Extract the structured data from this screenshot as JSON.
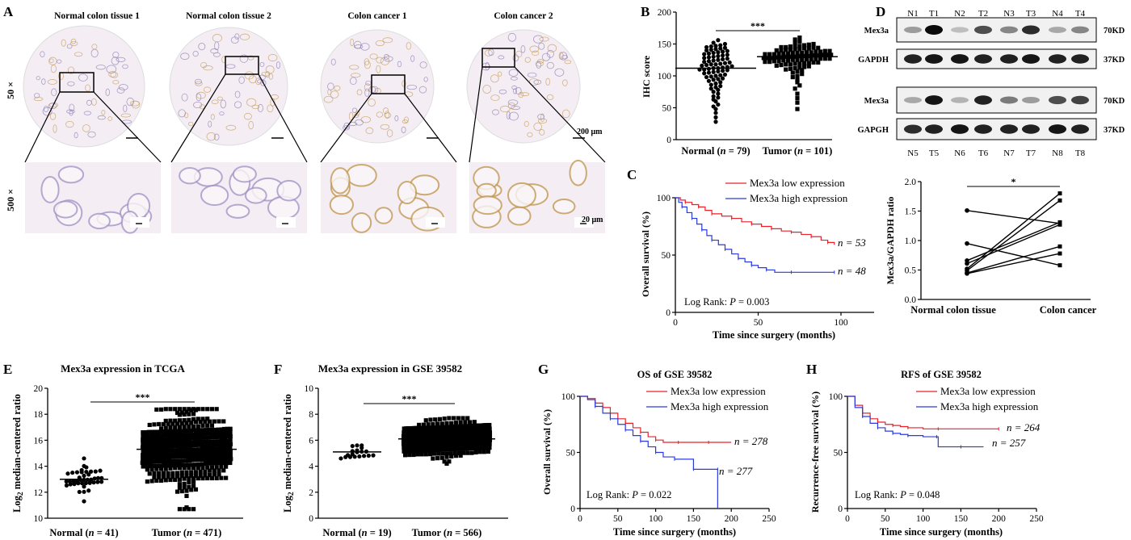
{
  "colors": {
    "black": "#000000",
    "red": "#e8222a",
    "blue": "#2a3bdc",
    "tissue_bg": "#f4eef4",
    "stain": "#c39a55"
  },
  "panelA": {
    "letter": "A",
    "columns": [
      "Normal colon tissue 1",
      "Normal colon tissue 2",
      "Colon cancer 1",
      "Colon cancer 2"
    ],
    "row_labels": [
      "50 ×",
      "500 ×"
    ],
    "scale_low": "200 μm",
    "scale_high": "20 μm"
  },
  "panelB": {
    "letter": "B",
    "sig": "***"
  },
  "panelC": {
    "letter": "C"
  },
  "panelD": {
    "letter": "D",
    "top_lanes": [
      "N1",
      "T1",
      "N2",
      "T2",
      "N3",
      "T3",
      "N4",
      "T4"
    ],
    "bottom_lanes": [
      "N5",
      "T5",
      "N6",
      "T6",
      "N7",
      "T7",
      "N8",
      "T8"
    ],
    "blots": [
      {
        "label": "Mex3a",
        "kd": "70KD",
        "intensity": [
          0.35,
          1.0,
          0.2,
          0.7,
          0.45,
          0.85,
          0.3,
          0.45
        ]
      },
      {
        "label": "GAPDH",
        "kd": "37KD",
        "intensity": [
          0.9,
          0.95,
          0.95,
          0.9,
          0.9,
          0.95,
          0.9,
          0.9
        ]
      },
      {
        "label": "Mex3a",
        "kd": "70KD",
        "intensity": [
          0.3,
          0.95,
          0.25,
          0.9,
          0.5,
          0.35,
          0.7,
          0.75
        ]
      },
      {
        "label": "GAPGH",
        "kd": "37KD",
        "intensity": [
          0.85,
          0.9,
          0.95,
          0.9,
          0.9,
          0.9,
          0.95,
          0.9
        ]
      }
    ],
    "sig": "*"
  },
  "panelE": {
    "letter": "E",
    "sig": "***"
  },
  "panelF": {
    "letter": "F",
    "sig": "***"
  },
  "panelG": {
    "letter": "G"
  },
  "panelH": {
    "letter": "H"
  },
  "chart_data": [
    {
      "id": "B",
      "type": "scatter",
      "title": "",
      "xlabel": "",
      "ylabel": "IHC score",
      "ylim": [
        0,
        200
      ],
      "yticks": [
        0,
        50,
        100,
        150,
        200
      ],
      "categories": [
        "Normal (n = 79)",
        "Tumor (n = 101)"
      ],
      "medians": [
        112,
        130
      ],
      "series": [
        {
          "n": 79,
          "marker": "circle",
          "values": [
            28,
            35,
            42,
            48,
            52,
            55,
            60,
            63,
            66,
            68,
            72,
            75,
            78,
            80,
            82,
            84,
            86,
            88,
            90,
            92,
            94,
            95,
            96,
            98,
            99,
            100,
            101,
            102,
            104,
            105,
            106,
            107,
            108,
            109,
            110,
            110,
            111,
            112,
            112,
            113,
            114,
            115,
            116,
            117,
            118,
            118,
            119,
            120,
            121,
            122,
            123,
            124,
            125,
            126,
            127,
            128,
            129,
            130,
            131,
            132,
            133,
            134,
            135,
            136,
            137,
            138,
            139,
            140,
            141,
            142,
            143,
            144,
            145,
            146,
            147,
            148,
            150,
            152,
            156
          ]
        },
        {
          "n": 101,
          "marker": "square",
          "values": [
            48,
            58,
            65,
            72,
            80,
            85,
            90,
            94,
            98,
            100,
            103,
            105,
            107,
            109,
            110,
            111,
            112,
            113,
            114,
            115,
            116,
            117,
            118,
            118,
            119,
            119,
            120,
            120,
            121,
            121,
            122,
            122,
            123,
            123,
            124,
            124,
            125,
            125,
            125,
            126,
            126,
            126,
            127,
            127,
            127,
            128,
            128,
            128,
            129,
            129,
            129,
            130,
            130,
            130,
            130,
            131,
            131,
            131,
            132,
            132,
            132,
            133,
            133,
            133,
            134,
            134,
            134,
            135,
            135,
            135,
            136,
            136,
            136,
            137,
            137,
            138,
            138,
            139,
            139,
            140,
            140,
            141,
            141,
            142,
            142,
            143,
            143,
            144,
            144,
            145,
            145,
            146,
            146,
            147,
            148,
            149,
            150,
            152,
            154,
            157,
            160
          ]
        }
      ]
    },
    {
      "id": "C",
      "type": "line",
      "xlabel": "Time since surgery (months)",
      "ylabel": "Overall survival (%)",
      "xlim": [
        0,
        120
      ],
      "ylim": [
        0,
        100
      ],
      "xticks": [
        0,
        50,
        100
      ],
      "yticks": [
        0,
        50,
        100
      ],
      "annotation": "Log Rank: P = 0.003",
      "series": [
        {
          "name": "Mex3a low expression",
          "color": "#e8222a",
          "n_label": "n = 53",
          "x": [
            0,
            3,
            6,
            10,
            14,
            18,
            22,
            28,
            34,
            40,
            46,
            52,
            58,
            64,
            70,
            76,
            82,
            88,
            92,
            96
          ],
          "y": [
            100,
            98,
            96,
            94,
            92,
            89,
            86,
            84,
            82,
            79,
            77,
            75,
            73,
            71,
            70,
            68,
            66,
            63,
            61,
            59
          ]
        },
        {
          "name": "Mex3a high expression",
          "color": "#2a3bdc",
          "n_label": "n = 48",
          "x": [
            0,
            2,
            4,
            7,
            10,
            13,
            16,
            19,
            22,
            26,
            30,
            34,
            38,
            42,
            46,
            50,
            55,
            60,
            70,
            80,
            96
          ],
          "y": [
            100,
            96,
            92,
            87,
            82,
            77,
            72,
            67,
            63,
            59,
            55,
            51,
            47,
            44,
            41,
            39,
            37,
            35,
            35,
            35,
            35
          ]
        }
      ]
    },
    {
      "id": "D",
      "type": "line",
      "xlabel": "",
      "ylabel": "Mex3a/GAPDH ratio",
      "ylim": [
        0,
        2.0
      ],
      "yticks": [
        0.0,
        0.5,
        1.0,
        1.5,
        2.0
      ],
      "categories": [
        "Normal colon tissue",
        "Colon cancer"
      ],
      "pairs": [
        [
          1.51,
          1.29
        ],
        [
          0.95,
          0.58
        ],
        [
          0.66,
          1.31
        ],
        [
          0.61,
          1.27
        ],
        [
          0.52,
          1.8
        ],
        [
          0.49,
          1.68
        ],
        [
          0.45,
          0.9
        ],
        [
          0.44,
          0.78
        ]
      ]
    },
    {
      "id": "E",
      "type": "scatter",
      "title": "Mex3a expression in TCGA",
      "ylabel": "Log2 median-centered ratio",
      "ylim": [
        10,
        20
      ],
      "yticks": [
        10,
        12,
        14,
        16,
        18,
        20
      ],
      "categories": [
        "Normal (n = 41)",
        "Tumor (n = 471)"
      ],
      "medians": [
        13.0,
        15.3
      ],
      "series": [
        {
          "n": 41,
          "marker": "circle",
          "mean": 13.0,
          "sd": 0.55,
          "min": 11.3,
          "max": 14.6
        },
        {
          "n": 471,
          "marker": "square",
          "mean": 15.3,
          "sd": 1.45,
          "min": 10.7,
          "max": 18.4
        }
      ]
    },
    {
      "id": "F",
      "type": "scatter",
      "title": "Mex3a expression in GSE 39582",
      "ylabel": "Log2 median-centered ratio",
      "ylim": [
        0,
        10
      ],
      "yticks": [
        0,
        2,
        4,
        6,
        8,
        10
      ],
      "categories": [
        "Normal (n = 19)",
        "Tumor (n = 566)"
      ],
      "medians": [
        5.1,
        6.1
      ],
      "series": [
        {
          "n": 19,
          "marker": "circle",
          "mean": 5.1,
          "sd": 0.3,
          "min": 4.6,
          "max": 5.6
        },
        {
          "n": 566,
          "marker": "square",
          "mean": 6.1,
          "sd": 0.65,
          "min": 4.2,
          "max": 7.7
        }
      ]
    },
    {
      "id": "G",
      "type": "line",
      "title": "OS of GSE 39582",
      "xlabel": "Time since surgery (months)",
      "ylabel": "Overall survival (%)",
      "xlim": [
        0,
        250
      ],
      "ylim": [
        0,
        100
      ],
      "xticks": [
        0,
        50,
        100,
        150,
        200,
        250
      ],
      "yticks": [
        0,
        50,
        100
      ],
      "annotation": "Log Rank: P = 0.022",
      "series": [
        {
          "name": "Mex3a low expression",
          "color": "#e8222a",
          "n_label": "n = 278",
          "x": [
            0,
            10,
            20,
            30,
            40,
            50,
            60,
            70,
            80,
            90,
            100,
            110,
            130,
            150,
            170,
            200
          ],
          "y": [
            100,
            98,
            94,
            90,
            85,
            80,
            76,
            72,
            68,
            64,
            61,
            59,
            59,
            59,
            59,
            59
          ]
        },
        {
          "name": "Mex3a high expression",
          "color": "#2a3bdc",
          "n_label": "n = 277",
          "x": [
            0,
            10,
            20,
            30,
            40,
            50,
            60,
            70,
            80,
            90,
            100,
            110,
            125,
            140,
            150,
            160,
            182,
            182
          ],
          "y": [
            100,
            97,
            91,
            85,
            80,
            75,
            70,
            65,
            60,
            55,
            50,
            46,
            44,
            44,
            35,
            35,
            35,
            0
          ]
        }
      ]
    },
    {
      "id": "H",
      "type": "line",
      "title": "RFS of GSE 39582",
      "xlabel": "Time since surgery (months)",
      "ylabel": "Recurrence-free survival (%)",
      "xlim": [
        0,
        250
      ],
      "ylim": [
        0,
        100
      ],
      "xticks": [
        0,
        50,
        100,
        150,
        200,
        250
      ],
      "yticks": [
        0,
        50,
        100
      ],
      "annotation": "Log Rank: P = 0.048",
      "series": [
        {
          "name": "Mex3a low expression",
          "color": "#e8222a",
          "n_label": "n = 264",
          "x": [
            0,
            10,
            20,
            30,
            40,
            50,
            60,
            70,
            80,
            100,
            120,
            150,
            200
          ],
          "y": [
            100,
            92,
            85,
            80,
            77,
            75,
            74,
            73,
            72,
            71,
            71,
            71,
            71
          ]
        },
        {
          "name": "Mex3a high expression",
          "color": "#2a3bdc",
          "n_label": "n = 257",
          "x": [
            0,
            10,
            20,
            30,
            40,
            50,
            60,
            70,
            80,
            100,
            118,
            120,
            150,
            180
          ],
          "y": [
            100,
            90,
            82,
            76,
            72,
            69,
            67,
            66,
            65,
            64,
            64,
            55,
            55,
            55
          ]
        }
      ]
    }
  ]
}
